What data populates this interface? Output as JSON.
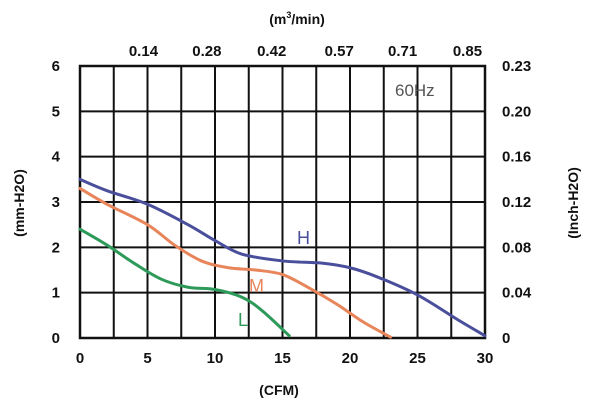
{
  "chart_data": {
    "type": "line",
    "title": "",
    "annotation": "60Hz",
    "xlabel": "(CFM)",
    "ylabel": "(mm-H2O)",
    "x2label_base": "(m",
    "x2label_sup": "3",
    "x2label_tail": "/min)",
    "y2label": "(Inch-H2O)",
    "xlim": [
      0,
      30
    ],
    "ylim": [
      0,
      6
    ],
    "x_ticks": [
      0,
      5,
      10,
      15,
      20,
      25,
      30
    ],
    "y_ticks": [
      0,
      1,
      2,
      3,
      4,
      5,
      6
    ],
    "x2_ticks": [
      "0.14",
      "0.28",
      "0.42",
      "0.57",
      "0.71",
      "0.85"
    ],
    "y2_ticks": [
      "0",
      "0.04",
      "0.08",
      "0.12",
      "0.16",
      "0.20",
      "0.23"
    ],
    "grid": true,
    "series": [
      {
        "name": "H",
        "color": "#4a4f9c",
        "x": [
          0,
          2,
          5,
          8,
          10,
          12,
          15,
          18,
          20,
          22,
          25,
          28,
          30
        ],
        "y": [
          3.5,
          3.25,
          2.95,
          2.5,
          2.15,
          1.85,
          1.7,
          1.65,
          1.55,
          1.35,
          0.95,
          0.4,
          0.05
        ]
      },
      {
        "name": "M",
        "color": "#e8855a",
        "x": [
          0,
          2,
          5,
          7,
          9,
          11,
          13,
          15,
          17,
          19,
          21,
          23
        ],
        "y": [
          3.3,
          2.95,
          2.5,
          2.05,
          1.7,
          1.55,
          1.5,
          1.4,
          1.1,
          0.75,
          0.35,
          0.02
        ]
      },
      {
        "name": "L",
        "color": "#2e9a5a",
        "x": [
          0,
          2,
          4,
          6,
          8,
          10,
          12,
          13.5,
          15.5
        ],
        "y": [
          2.4,
          2.05,
          1.65,
          1.3,
          1.12,
          1.07,
          0.9,
          0.6,
          0.05
        ]
      }
    ]
  }
}
